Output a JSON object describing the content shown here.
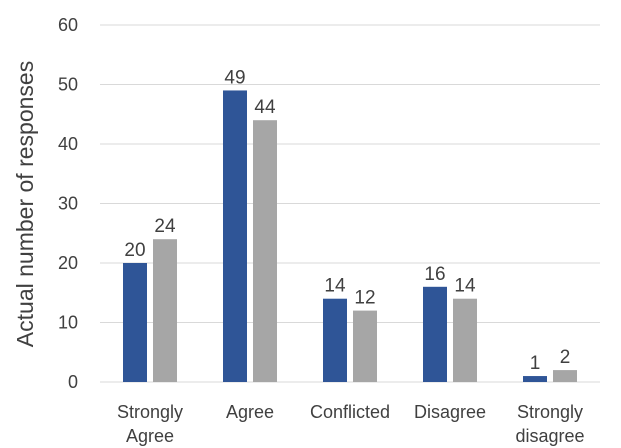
{
  "chart_data": {
    "type": "bar",
    "categories": [
      "Strongly Agree",
      "Agree",
      "Conflicted",
      "Disagree",
      "Strongly disagree"
    ],
    "category_lines": [
      [
        "Strongly",
        "Agree"
      ],
      [
        "Agree"
      ],
      [
        "Conflicted"
      ],
      [
        "Disagree"
      ],
      [
        "Strongly",
        "disagree"
      ]
    ],
    "series": [
      {
        "values": [
          20,
          49,
          14,
          16,
          1
        ],
        "color": "#2F5597"
      },
      {
        "values": [
          24,
          44,
          12,
          14,
          2
        ],
        "color": "#A6A6A6"
      }
    ],
    "ylabel": "Actual number of responses",
    "xlabel": "",
    "title": "",
    "ylim": [
      0,
      60
    ],
    "yticks": [
      0,
      10,
      20,
      30,
      40,
      50,
      60
    ],
    "grid": true,
    "data_labels": true,
    "gridline_color": "#D9D9D9",
    "text_color": "#404040"
  }
}
